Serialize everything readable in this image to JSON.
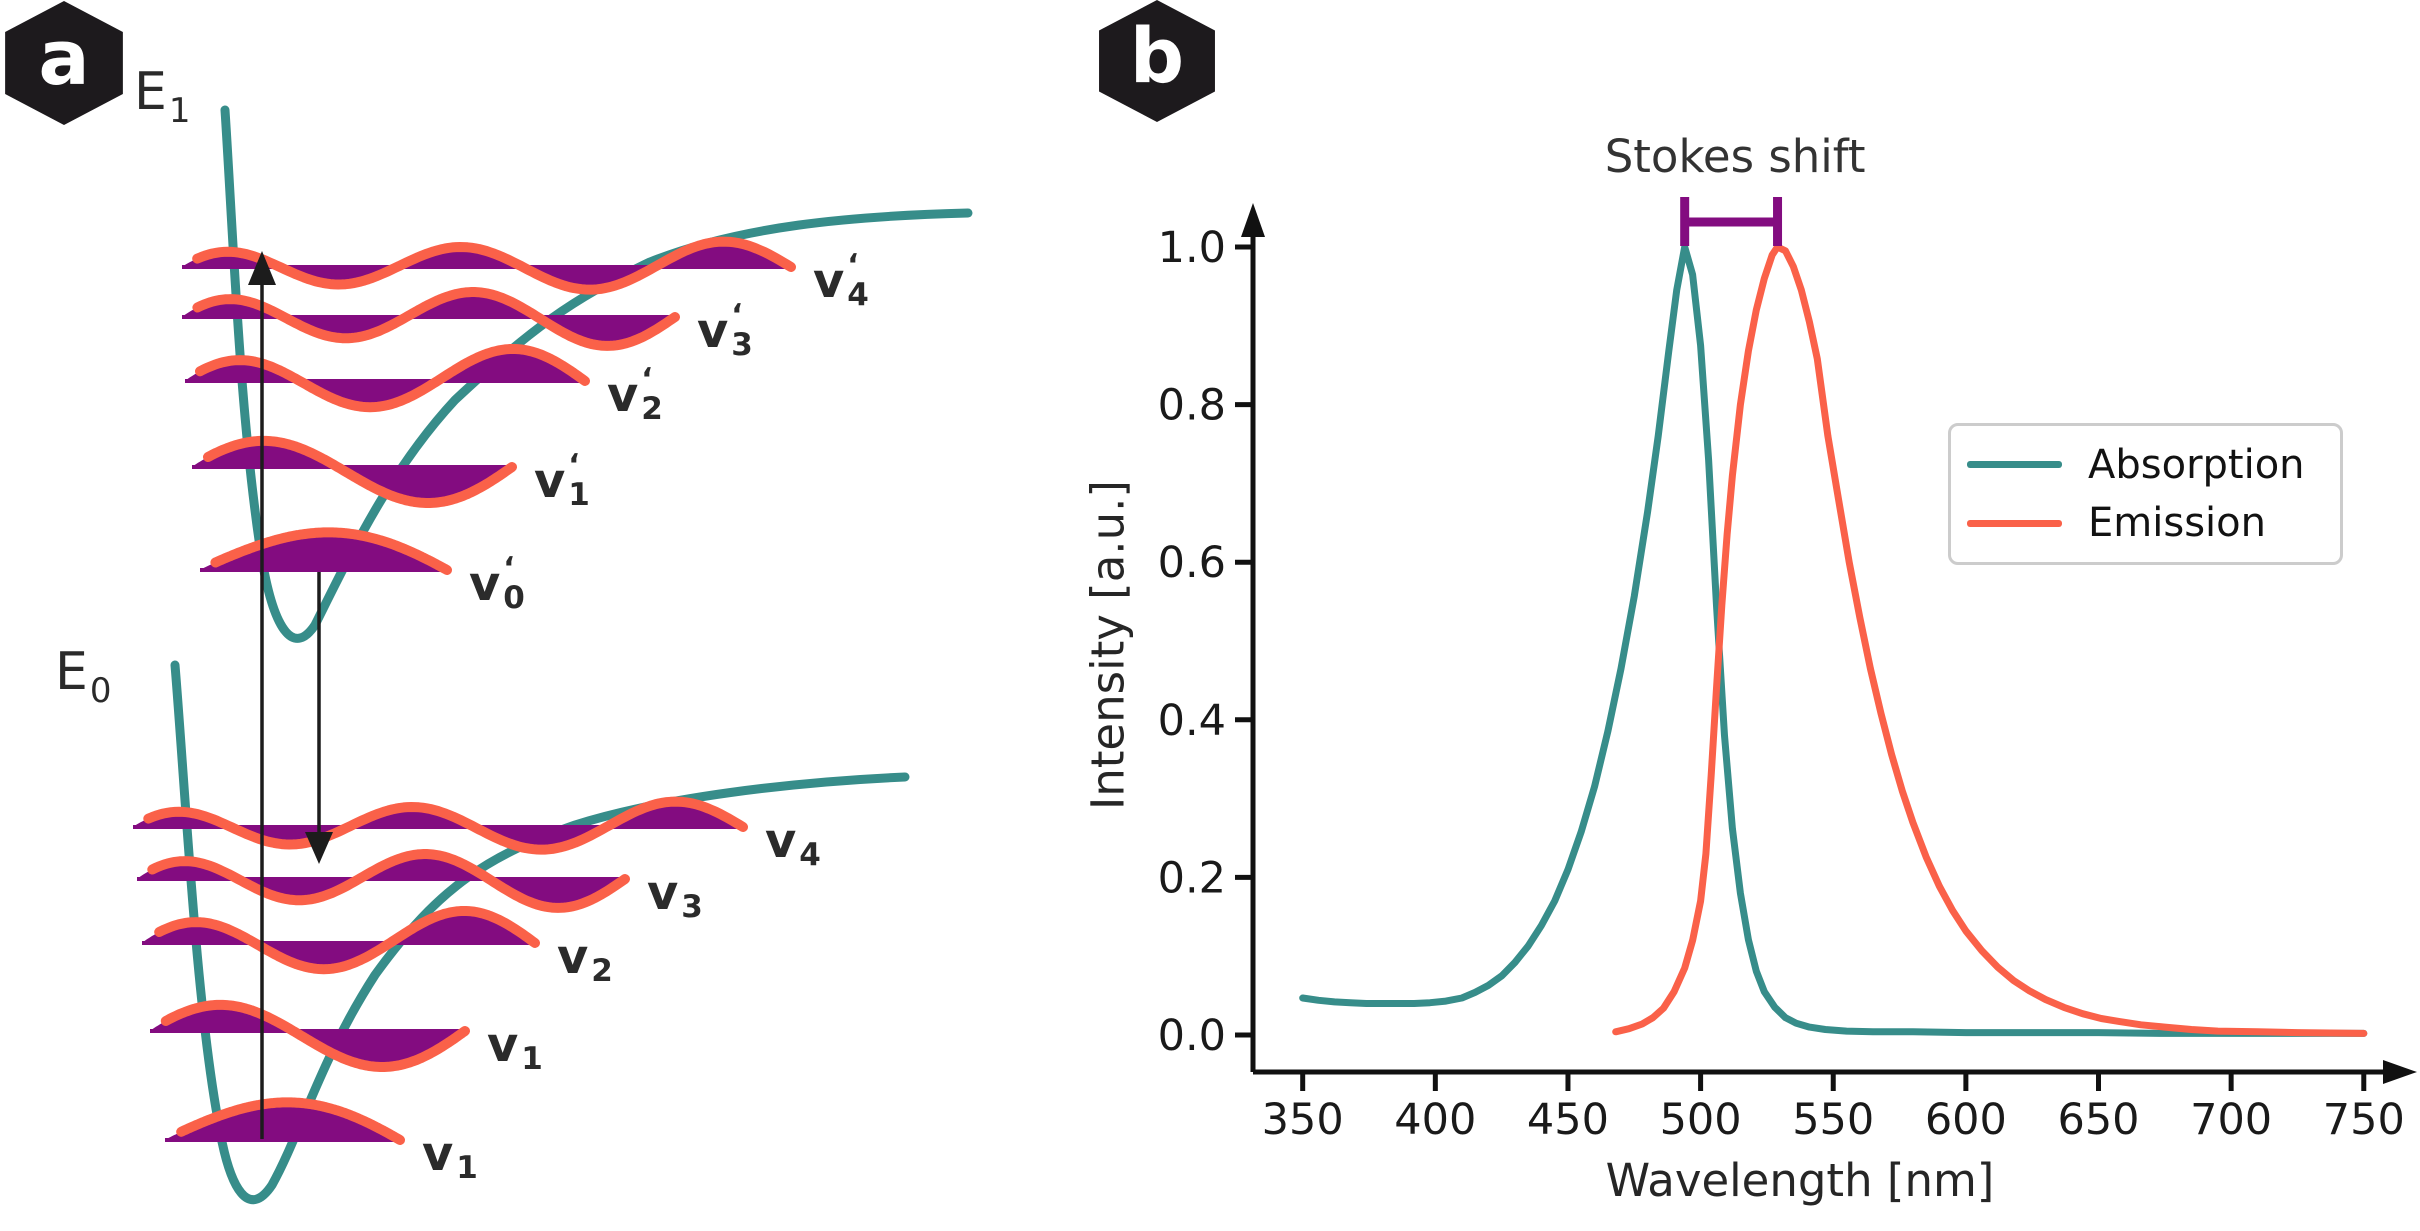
{
  "colors": {
    "teal": "#378d8a",
    "red": "#fa6149",
    "purple": "#830c80",
    "arrow_black": "#1c1c1c",
    "text_dark": "#262626",
    "badge_bg": "#1d1a1d"
  },
  "figure": {
    "panel_a": {
      "badge": "a",
      "upper_state_label": {
        "base": "E",
        "sub": "1"
      },
      "lower_state_label": {
        "base": "E",
        "sub": "0"
      },
      "upper_levels": [
        {
          "base": "v",
          "prime": "‘",
          "sub": "4"
        },
        {
          "base": "v",
          "prime": "‘",
          "sub": "3"
        },
        {
          "base": "v",
          "prime": "‘",
          "sub": "2"
        },
        {
          "base": "v",
          "prime": "‘",
          "sub": "1"
        },
        {
          "base": "v",
          "prime": "‘",
          "sub": "0"
        }
      ],
      "lower_levels": [
        {
          "base": "v",
          "prime": "",
          "sub": "4"
        },
        {
          "base": "v",
          "prime": "",
          "sub": "3"
        },
        {
          "base": "v",
          "prime": "",
          "sub": "2"
        },
        {
          "base": "v",
          "prime": "",
          "sub": "1"
        },
        {
          "base": "v",
          "prime": "",
          "sub": "1"
        }
      ]
    },
    "panel_b": {
      "badge": "b",
      "annotation": "Stokes shift"
    }
  },
  "chart_data": {
    "type": "line",
    "xlabel": "Wavelength [nm]",
    "ylabel": "Intensity [a.u.]",
    "xlim": [
      338,
      772
    ],
    "ylim": [
      -0.05,
      1.08
    ],
    "grid": false,
    "legend_position": "center right",
    "xticks": [
      350,
      400,
      450,
      500,
      550,
      600,
      650,
      700,
      750
    ],
    "ytick_values": [
      0.0,
      0.2,
      0.4,
      0.6,
      0.8,
      1.0
    ],
    "ytick_labels": [
      "0.0",
      "0.2",
      "0.4",
      "0.6",
      "0.8",
      "1.0"
    ],
    "annotation": {
      "label": "Stokes shift",
      "from_nm": 494,
      "to_nm": 529
    },
    "series": [
      {
        "name": "Absorption",
        "color_key": "teal",
        "peak_nm": 494,
        "points": [
          [
            350,
            0.047
          ],
          [
            356,
            0.044
          ],
          [
            362,
            0.042
          ],
          [
            368,
            0.041
          ],
          [
            374,
            0.04
          ],
          [
            380,
            0.04
          ],
          [
            386,
            0.04
          ],
          [
            392,
            0.04
          ],
          [
            398,
            0.041
          ],
          [
            404,
            0.043
          ],
          [
            410,
            0.047
          ],
          [
            415,
            0.054
          ],
          [
            420,
            0.063
          ],
          [
            425,
            0.075
          ],
          [
            430,
            0.092
          ],
          [
            435,
            0.113
          ],
          [
            440,
            0.139
          ],
          [
            445,
            0.17
          ],
          [
            450,
            0.21
          ],
          [
            455,
            0.258
          ],
          [
            460,
            0.315
          ],
          [
            465,
            0.385
          ],
          [
            470,
            0.465
          ],
          [
            475,
            0.557
          ],
          [
            480,
            0.664
          ],
          [
            484,
            0.76
          ],
          [
            488,
            0.868
          ],
          [
            491,
            0.945
          ],
          [
            494,
            1.0
          ],
          [
            497,
            0.965
          ],
          [
            500,
            0.875
          ],
          [
            503,
            0.73
          ],
          [
            506,
            0.545
          ],
          [
            509,
            0.38
          ],
          [
            512,
            0.262
          ],
          [
            515,
            0.18
          ],
          [
            518,
            0.121
          ],
          [
            521,
            0.081
          ],
          [
            524,
            0.055
          ],
          [
            528,
            0.035
          ],
          [
            532,
            0.022
          ],
          [
            536,
            0.015
          ],
          [
            541,
            0.01
          ],
          [
            547,
            0.007
          ],
          [
            555,
            0.005
          ],
          [
            565,
            0.004
          ],
          [
            580,
            0.004
          ],
          [
            600,
            0.003
          ],
          [
            625,
            0.003
          ],
          [
            650,
            0.003
          ],
          [
            675,
            0.002
          ],
          [
            700,
            0.002
          ],
          [
            725,
            0.002
          ],
          [
            750,
            0.002
          ]
        ]
      },
      {
        "name": "Emission",
        "color_key": "red",
        "peak_nm": 529,
        "points": [
          [
            468,
            0.004
          ],
          [
            473,
            0.008
          ],
          [
            478,
            0.014
          ],
          [
            482,
            0.022
          ],
          [
            486,
            0.034
          ],
          [
            490,
            0.055
          ],
          [
            494,
            0.085
          ],
          [
            497,
            0.12
          ],
          [
            500,
            0.17
          ],
          [
            502,
            0.23
          ],
          [
            504,
            0.33
          ],
          [
            506,
            0.44
          ],
          [
            508,
            0.545
          ],
          [
            510,
            0.635
          ],
          [
            512,
            0.71
          ],
          [
            515,
            0.8
          ],
          [
            518,
            0.868
          ],
          [
            521,
            0.92
          ],
          [
            524,
            0.96
          ],
          [
            527,
            0.99
          ],
          [
            529,
            1.0
          ],
          [
            532,
            0.995
          ],
          [
            535,
            0.975
          ],
          [
            538,
            0.945
          ],
          [
            541,
            0.905
          ],
          [
            544,
            0.858
          ],
          [
            548,
            0.76
          ],
          [
            552,
            0.68
          ],
          [
            556,
            0.6
          ],
          [
            560,
            0.53
          ],
          [
            564,
            0.465
          ],
          [
            568,
            0.408
          ],
          [
            572,
            0.356
          ],
          [
            576,
            0.31
          ],
          [
            580,
            0.27
          ],
          [
            585,
            0.226
          ],
          [
            590,
            0.189
          ],
          [
            595,
            0.158
          ],
          [
            600,
            0.132
          ],
          [
            606,
            0.107
          ],
          [
            612,
            0.086
          ],
          [
            618,
            0.069
          ],
          [
            624,
            0.056
          ],
          [
            630,
            0.045
          ],
          [
            637,
            0.035
          ],
          [
            644,
            0.027
          ],
          [
            651,
            0.021
          ],
          [
            658,
            0.017
          ],
          [
            666,
            0.013
          ],
          [
            675,
            0.01
          ],
          [
            685,
            0.007
          ],
          [
            695,
            0.005
          ],
          [
            710,
            0.004
          ],
          [
            725,
            0.003
          ],
          [
            750,
            0.002
          ]
        ]
      }
    ]
  }
}
